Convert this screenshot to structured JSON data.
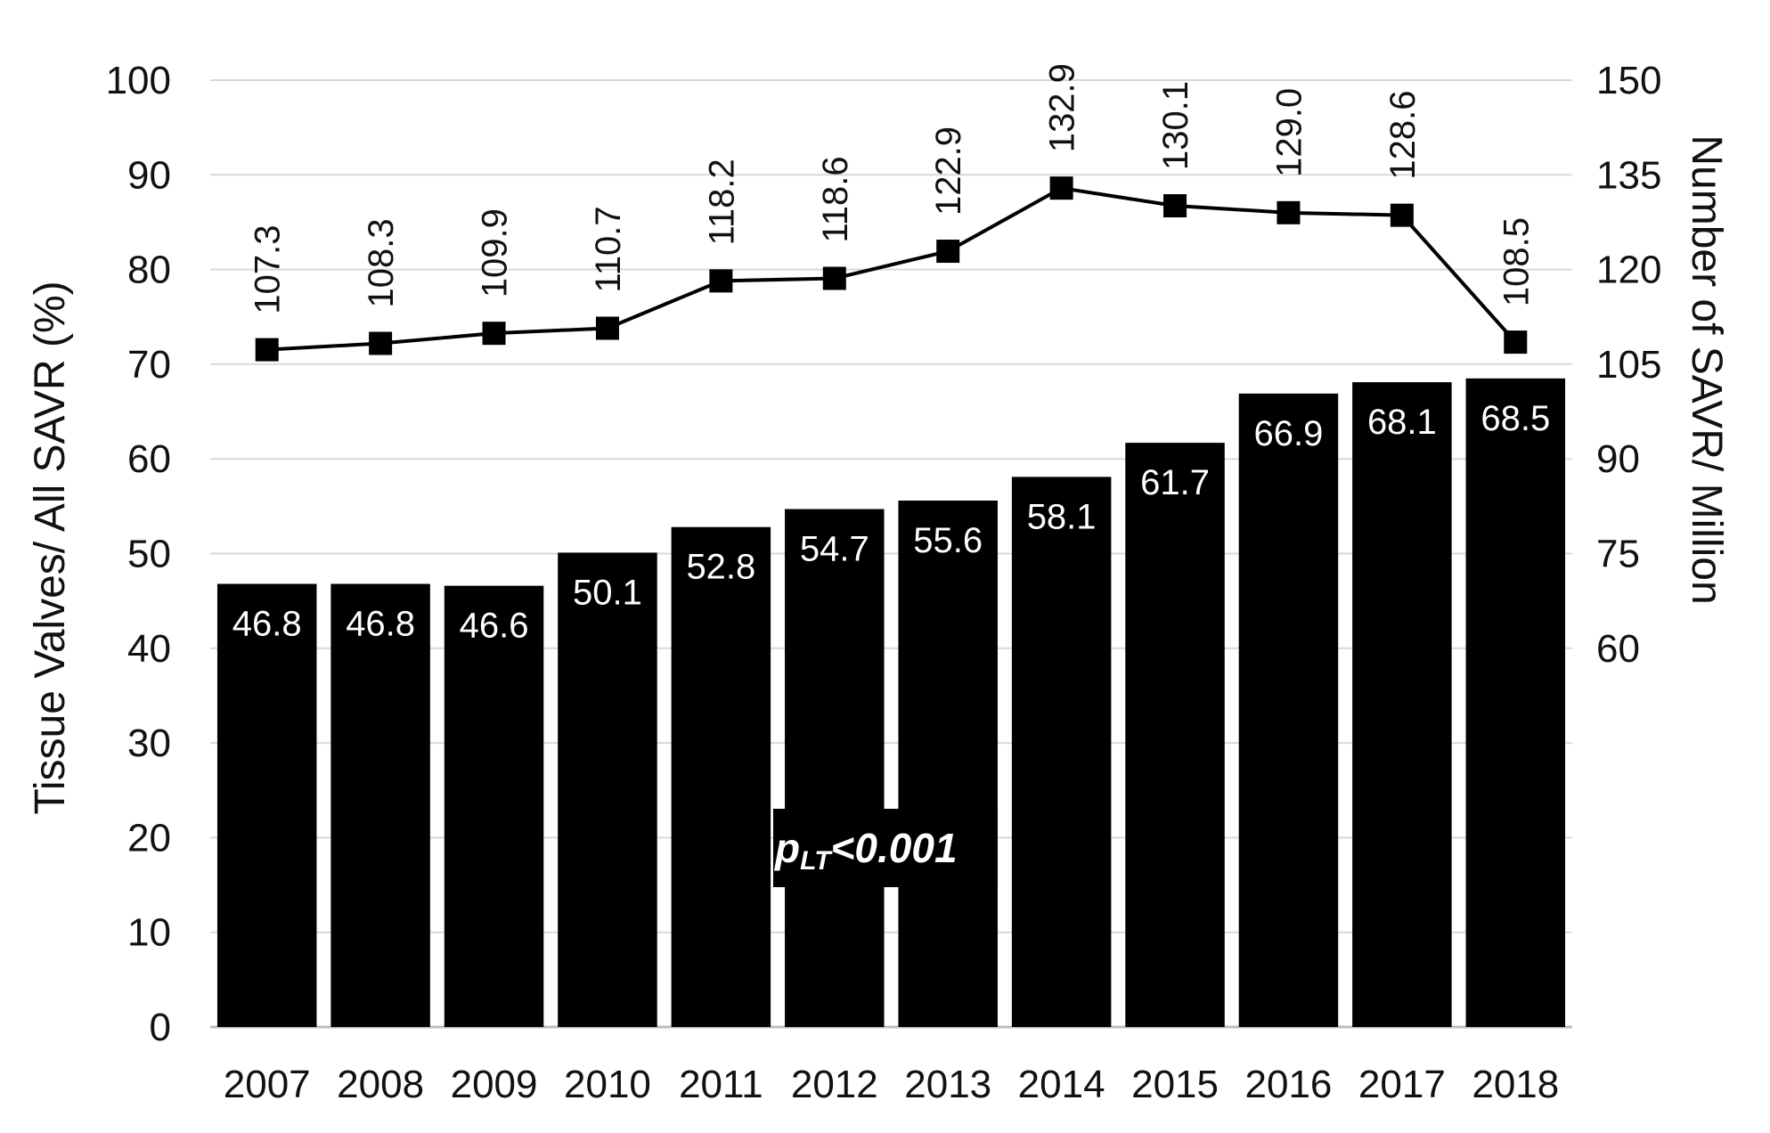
{
  "chart_data": {
    "type": "bar",
    "categories": [
      "2007",
      "2008",
      "2009",
      "2010",
      "2011",
      "2012",
      "2013",
      "2014",
      "2015",
      "2016",
      "2017",
      "2018"
    ],
    "bars": {
      "axis": "left",
      "values": [
        46.8,
        46.8,
        46.6,
        50.1,
        52.8,
        54.7,
        55.6,
        58.1,
        61.7,
        66.9,
        68.1,
        68.5
      ],
      "color": "#000000",
      "labels": [
        "46.8",
        "46.8",
        "46.6",
        "50.1",
        "52.8",
        "54.7",
        "55.6",
        "58.1",
        "61.7",
        "66.9",
        "68.1",
        "68.5"
      ]
    },
    "line": {
      "type": "line",
      "axis": "right",
      "marker": "square",
      "values": [
        107.3,
        108.3,
        109.9,
        110.7,
        118.2,
        118.6,
        122.9,
        132.9,
        130.1,
        129.0,
        128.6,
        108.5
      ],
      "color": "#000000",
      "labels": [
        "107.3",
        "108.3",
        "109.9",
        "110.7",
        "118.2",
        "118.6",
        "122.9",
        "132.9",
        "130.1",
        "129.0",
        "128.6",
        "108.5"
      ]
    },
    "y_left": {
      "label": "Tissue Valves/ All SAVR (%)",
      "ylim": [
        0,
        100
      ],
      "ticks": [
        0,
        10,
        20,
        30,
        40,
        50,
        60,
        70,
        80,
        90,
        100
      ],
      "tick_labels": [
        "0",
        "10",
        "20",
        "30",
        "40",
        "50",
        "60",
        "70",
        "80",
        "90",
        "100"
      ]
    },
    "y_right": {
      "label": "Number of SAVR/ Million",
      "ylim": [
        60,
        150
      ],
      "ticks": [
        60,
        75,
        90,
        105,
        120,
        135,
        150
      ],
      "tick_labels": [
        "60",
        "75",
        "90",
        "105",
        "120",
        "135",
        "150"
      ]
    },
    "xlabel": "",
    "grid": true,
    "legend": "none",
    "annotation": {
      "main": "p",
      "subscript": "LT",
      "rest": "<0.001"
    }
  }
}
